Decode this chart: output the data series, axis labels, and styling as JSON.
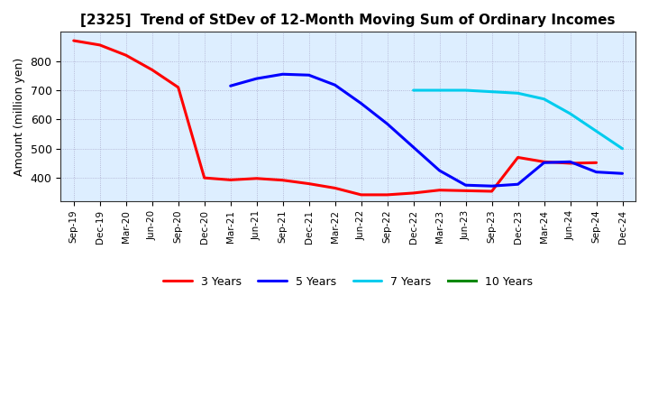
{
  "title": "[2325]  Trend of StDev of 12-Month Moving Sum of Ordinary Incomes",
  "ylabel": "Amount (million yen)",
  "background_color": "#ffffff",
  "plot_bg_color": "#ddeeff",
  "grid_color": "#aaaacc",
  "x_labels": [
    "Sep-19",
    "Dec-19",
    "Mar-20",
    "Jun-20",
    "Sep-20",
    "Dec-20",
    "Mar-21",
    "Jun-21",
    "Sep-21",
    "Dec-21",
    "Mar-22",
    "Jun-22",
    "Sep-22",
    "Dec-22",
    "Mar-23",
    "Jun-23",
    "Sep-23",
    "Dec-23",
    "Mar-24",
    "Jun-24",
    "Sep-24",
    "Dec-24"
  ],
  "series": {
    "3 Years": {
      "color": "#ff0000",
      "data": [
        870,
        855,
        820,
        770,
        710,
        400,
        393,
        398,
        392,
        380,
        365,
        342,
        342,
        348,
        358,
        356,
        354,
        470,
        455,
        450,
        452,
        null
      ]
    },
    "5 Years": {
      "color": "#0000ff",
      "data": [
        null,
        null,
        null,
        null,
        null,
        null,
        715,
        740,
        755,
        752,
        718,
        655,
        585,
        505,
        425,
        375,
        372,
        378,
        452,
        455,
        420,
        415
      ]
    },
    "7 Years": {
      "color": "#00ccee",
      "data": [
        null,
        null,
        null,
        null,
        null,
        null,
        null,
        null,
        null,
        null,
        null,
        null,
        null,
        700,
        700,
        700,
        695,
        690,
        670,
        620,
        560,
        500
      ]
    },
    "10 Years": {
      "color": "#008800",
      "data": [
        null,
        null,
        null,
        null,
        null,
        null,
        null,
        null,
        null,
        null,
        null,
        null,
        null,
        null,
        null,
        null,
        null,
        null,
        null,
        null,
        null,
        null
      ]
    }
  },
  "ylim": [
    320,
    900
  ],
  "yticks": [
    400,
    500,
    600,
    700,
    800
  ],
  "legend_order": [
    "3 Years",
    "5 Years",
    "7 Years",
    "10 Years"
  ]
}
